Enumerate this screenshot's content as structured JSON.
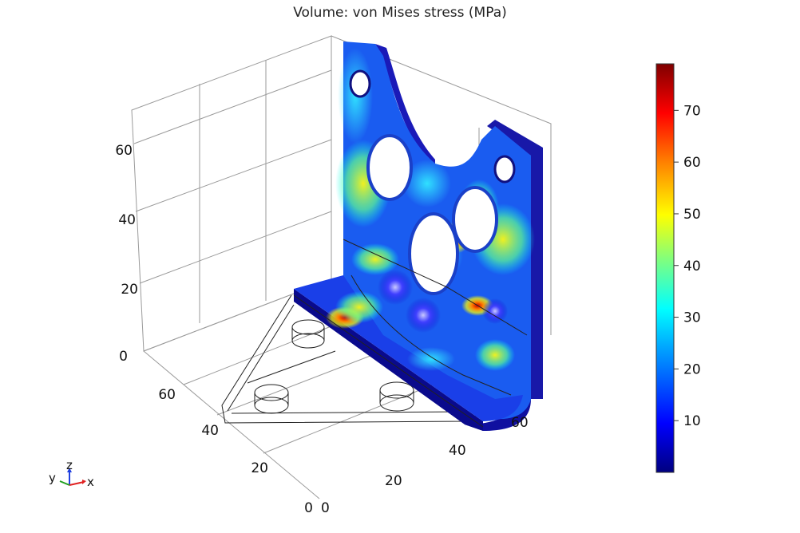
{
  "title": "Volume: von Mises stress (MPa)",
  "z_axis": {
    "ticks": [
      "0",
      "20",
      "40",
      "60"
    ]
  },
  "y_axis": {
    "ticks": [
      "0",
      "20",
      "40",
      "60"
    ]
  },
  "x_axis": {
    "ticks": [
      "20",
      "40",
      "60"
    ]
  },
  "triad": {
    "y": "y",
    "z": "z",
    "x": "x"
  },
  "colorbar": {
    "ticks": [
      "10",
      "20",
      "30",
      "40",
      "50",
      "60",
      "70"
    ],
    "range": [
      0,
      79
    ],
    "colormap": [
      "#00007f",
      "#0000ff",
      "#00a0ff",
      "#00ffff",
      "#7fff7f",
      "#ffff00",
      "#ff8000",
      "#ff0000",
      "#7f0000"
    ]
  },
  "colors": {
    "triad_x": "#e02020",
    "triad_y": "#20a020",
    "triad_z": "#2040e0"
  }
}
